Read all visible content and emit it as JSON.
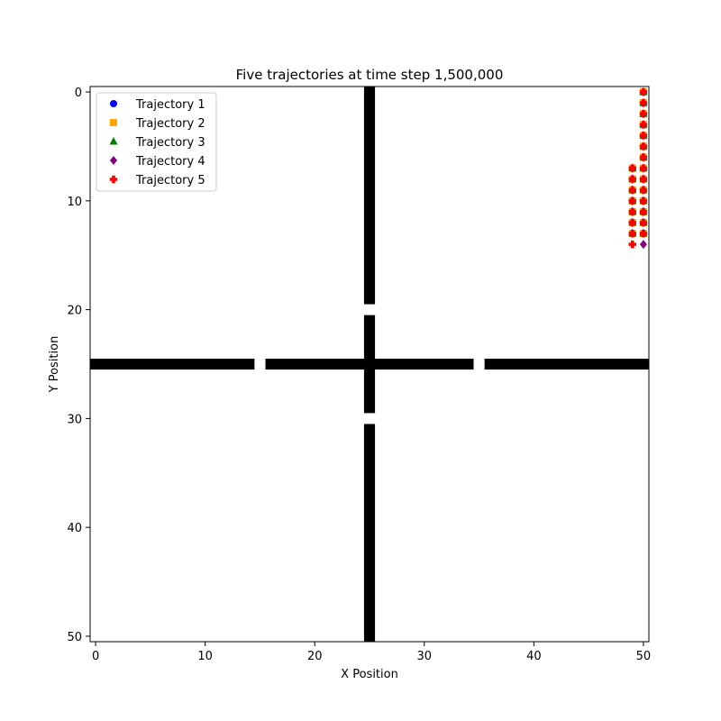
{
  "chart_data": {
    "type": "scatter",
    "title": "Five trajectories at time step 1,500,000",
    "xlabel": "X Position",
    "ylabel": "Y Position",
    "xlim": [
      -0.5,
      50.5
    ],
    "ylim": [
      50.5,
      -0.5
    ],
    "y_inverted": true,
    "xticks": [
      0,
      10,
      20,
      30,
      40,
      50
    ],
    "yticks": [
      0,
      10,
      20,
      30,
      40,
      50
    ],
    "grid": false,
    "legend": {
      "placement": "top-left",
      "entries": [
        "Trajectory 1",
        "Trajectory 2",
        "Trajectory 3",
        "Trajectory 4",
        "Trajectory 5"
      ]
    },
    "walls": {
      "color": "#000000",
      "cells": {
        "vertical_column_x": 25,
        "vertical_rows": [
          [
            0,
            19
          ],
          [
            21,
            29
          ],
          [
            31,
            50
          ]
        ],
        "horizontal_row_y": 25,
        "horizontal_columns": [
          [
            0,
            14
          ],
          [
            16,
            34
          ],
          [
            36,
            50
          ]
        ]
      }
    },
    "series": [
      {
        "name": "Trajectory 1",
        "marker": "circle",
        "color": "#0000ff",
        "points": [
          [
            50,
            0
          ],
          [
            50,
            1
          ],
          [
            50,
            2
          ],
          [
            50,
            3
          ],
          [
            50,
            4
          ],
          [
            50,
            5
          ],
          [
            50,
            6
          ],
          [
            50,
            7
          ],
          [
            50,
            8
          ],
          [
            50,
            9
          ],
          [
            50,
            10
          ],
          [
            50,
            11
          ],
          [
            50,
            12
          ],
          [
            50,
            13
          ],
          [
            49,
            7
          ],
          [
            49,
            8
          ],
          [
            49,
            9
          ],
          [
            49,
            10
          ],
          [
            49,
            11
          ],
          [
            49,
            12
          ],
          [
            49,
            13
          ]
        ]
      },
      {
        "name": "Trajectory 2",
        "marker": "square",
        "color": "#ffa500",
        "points": [
          [
            50,
            0
          ],
          [
            50,
            1
          ],
          [
            50,
            2
          ],
          [
            50,
            3
          ],
          [
            50,
            4
          ],
          [
            50,
            5
          ],
          [
            50,
            6
          ],
          [
            50,
            7
          ],
          [
            50,
            8
          ],
          [
            50,
            9
          ],
          [
            50,
            10
          ],
          [
            50,
            11
          ],
          [
            50,
            12
          ],
          [
            50,
            13
          ],
          [
            49,
            7
          ],
          [
            49,
            8
          ],
          [
            49,
            9
          ],
          [
            49,
            10
          ],
          [
            49,
            11
          ],
          [
            49,
            12
          ],
          [
            49,
            13
          ]
        ]
      },
      {
        "name": "Trajectory 3",
        "marker": "triangle",
        "color": "#008000",
        "points": [
          [
            50,
            0
          ],
          [
            50,
            1
          ],
          [
            50,
            2
          ],
          [
            50,
            3
          ],
          [
            50,
            4
          ],
          [
            50,
            5
          ],
          [
            50,
            6
          ],
          [
            50,
            7
          ],
          [
            50,
            8
          ],
          [
            50,
            9
          ],
          [
            50,
            10
          ],
          [
            50,
            11
          ],
          [
            50,
            12
          ],
          [
            50,
            13
          ],
          [
            49,
            7
          ],
          [
            49,
            8
          ],
          [
            49,
            9
          ],
          [
            49,
            10
          ],
          [
            49,
            11
          ],
          [
            49,
            12
          ],
          [
            49,
            13
          ]
        ]
      },
      {
        "name": "Trajectory 4",
        "marker": "diamond",
        "color": "#800080",
        "points": [
          [
            50,
            0
          ],
          [
            50,
            1
          ],
          [
            50,
            2
          ],
          [
            50,
            3
          ],
          [
            50,
            4
          ],
          [
            50,
            5
          ],
          [
            50,
            6
          ],
          [
            50,
            7
          ],
          [
            50,
            8
          ],
          [
            50,
            9
          ],
          [
            50,
            10
          ],
          [
            50,
            11
          ],
          [
            50,
            12
          ],
          [
            50,
            13
          ],
          [
            50,
            14
          ],
          [
            49,
            7
          ],
          [
            49,
            8
          ],
          [
            49,
            9
          ],
          [
            49,
            10
          ],
          [
            49,
            11
          ],
          [
            49,
            12
          ],
          [
            49,
            13
          ]
        ]
      },
      {
        "name": "Trajectory 5",
        "marker": "plus",
        "color": "#ff0000",
        "points": [
          [
            50,
            0
          ],
          [
            50,
            1
          ],
          [
            50,
            2
          ],
          [
            50,
            3
          ],
          [
            50,
            4
          ],
          [
            50,
            5
          ],
          [
            50,
            6
          ],
          [
            50,
            7
          ],
          [
            50,
            8
          ],
          [
            50,
            9
          ],
          [
            50,
            10
          ],
          [
            50,
            11
          ],
          [
            50,
            12
          ],
          [
            50,
            13
          ],
          [
            49,
            7
          ],
          [
            49,
            8
          ],
          [
            49,
            9
          ],
          [
            49,
            10
          ],
          [
            49,
            11
          ],
          [
            49,
            12
          ],
          [
            49,
            13
          ],
          [
            49,
            14
          ]
        ]
      }
    ]
  }
}
